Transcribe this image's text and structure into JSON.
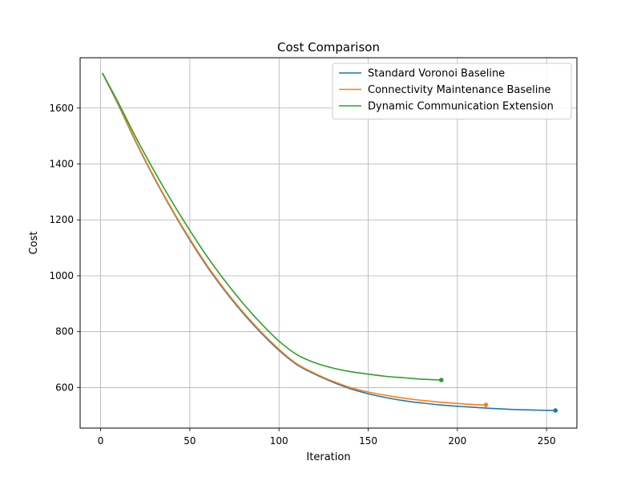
{
  "chart_data": {
    "type": "line",
    "title": "Cost Comparison",
    "xlabel": "Iteration",
    "ylabel": "Cost",
    "xlim": [
      -11.5,
      267
    ],
    "ylim": [
      455,
      1780
    ],
    "xticks": [
      0,
      50,
      100,
      150,
      200,
      250
    ],
    "yticks": [
      600,
      800,
      1000,
      1200,
      1400,
      1600
    ],
    "grid": true,
    "legend_position": "top-right",
    "series": [
      {
        "name": "Standard Voronoi Baseline",
        "color": "#1f77b4",
        "x": [
          1,
          10,
          20,
          30,
          40,
          50,
          60,
          70,
          80,
          90,
          100,
          110,
          120,
          130,
          140,
          150,
          160,
          170,
          180,
          190,
          200,
          210,
          220,
          230,
          240,
          255
        ],
        "y": [
          1725,
          1610,
          1475,
          1350,
          1235,
          1128,
          1030,
          943,
          865,
          795,
          733,
          682,
          648,
          620,
          596,
          578,
          564,
          553,
          545,
          538,
          533,
          529,
          525,
          522,
          520,
          518
        ]
      },
      {
        "name": "Connectivity Maintenance Baseline",
        "color": "#ff7f0e",
        "x": [
          1,
          10,
          20,
          30,
          40,
          50,
          60,
          70,
          80,
          90,
          100,
          110,
          120,
          130,
          140,
          150,
          160,
          170,
          180,
          190,
          200,
          210,
          216
        ],
        "y": [
          1725,
          1612,
          1478,
          1353,
          1238,
          1132,
          1034,
          947,
          869,
          799,
          737,
          685,
          651,
          623,
          600,
          584,
          572,
          562,
          554,
          548,
          543,
          539,
          538
        ]
      },
      {
        "name": "Dynamic Communication Extension",
        "color": "#2ca02c",
        "x": [
          1,
          10,
          20,
          30,
          40,
          50,
          60,
          70,
          80,
          90,
          100,
          110,
          120,
          130,
          140,
          150,
          160,
          170,
          180,
          191
        ],
        "y": [
          1725,
          1618,
          1492,
          1375,
          1265,
          1162,
          1066,
          979,
          900,
          829,
          766,
          718,
          689,
          670,
          657,
          648,
          640,
          635,
          630,
          627
        ]
      }
    ]
  }
}
